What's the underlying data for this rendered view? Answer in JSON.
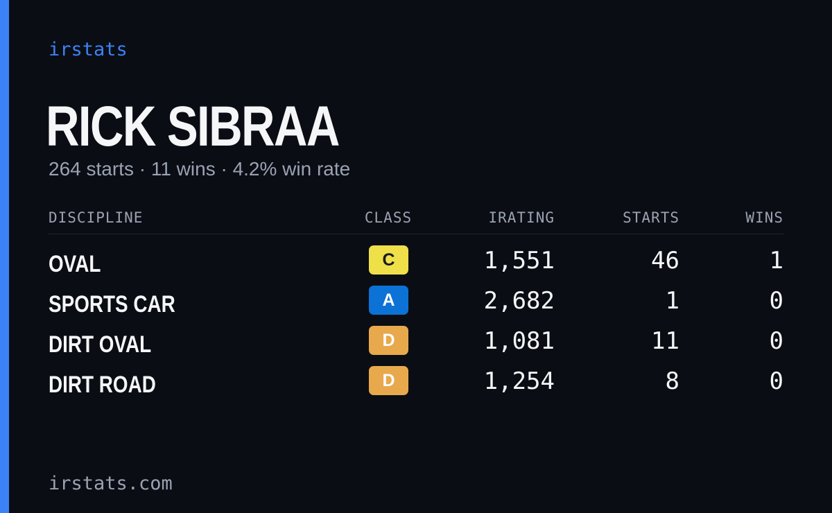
{
  "brand": "irstats",
  "profile": {
    "name": "RICK SIBRAA",
    "summary": "264 starts · 11 wins · 4.2% win rate"
  },
  "table": {
    "columns": [
      "DISCIPLINE",
      "CLASS",
      "IRATING",
      "STARTS",
      "WINS"
    ],
    "rows": [
      [
        "OVAL",
        "C",
        "1,551",
        "46",
        "1"
      ],
      [
        "SPORTS CAR",
        "A",
        "2,682",
        "1",
        "0"
      ],
      [
        "DIRT OVAL",
        "D",
        "1,081",
        "11",
        "0"
      ],
      [
        "DIRT ROAD",
        "D",
        "1,254",
        "8",
        "0"
      ]
    ]
  },
  "footer": "irstats.com"
}
